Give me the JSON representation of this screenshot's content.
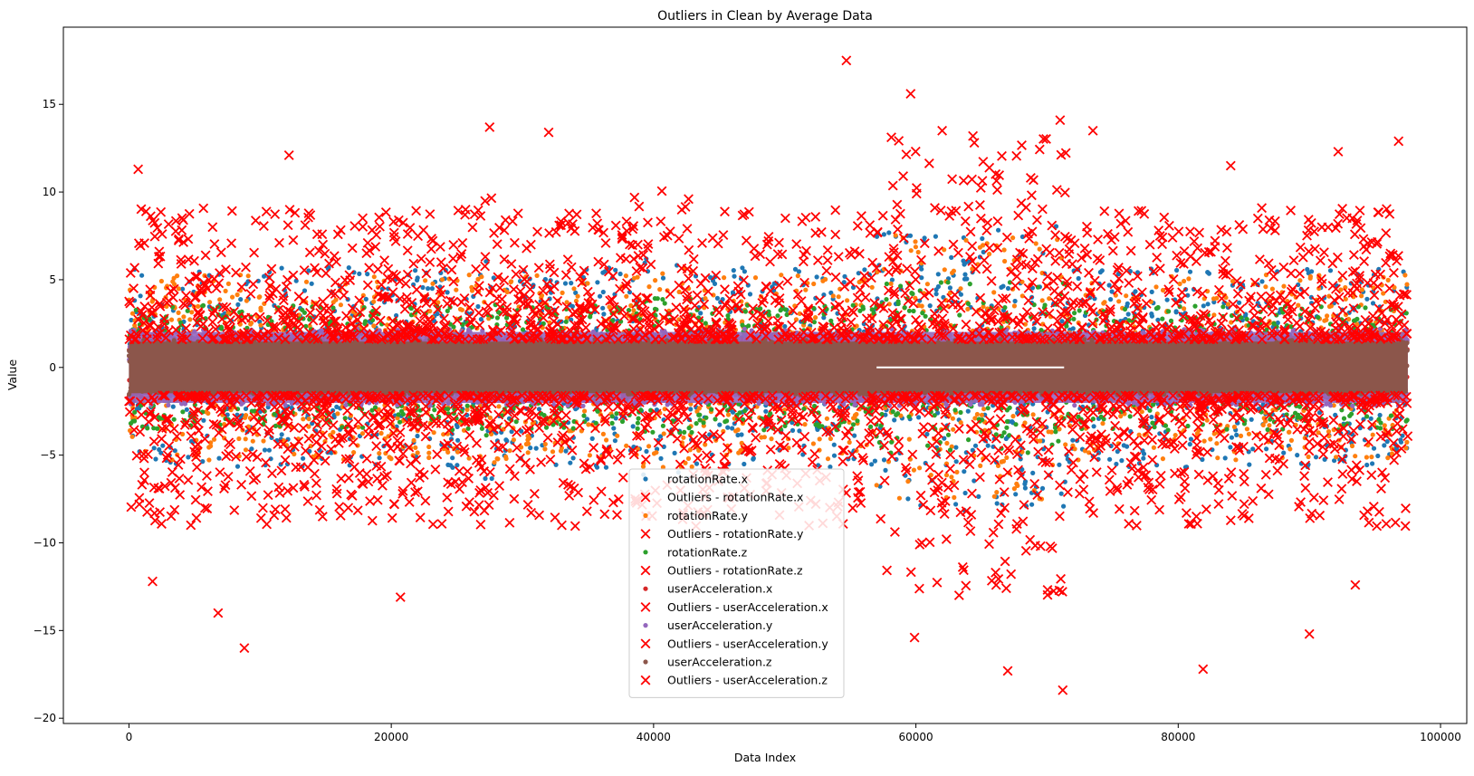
{
  "chart_data": {
    "type": "scatter",
    "title": "Outliers in Clean by Average Data",
    "xlabel": "Data Index",
    "ylabel": "Value",
    "xlim": [
      -5000,
      102000
    ],
    "ylim": [
      -20.3,
      19.4
    ],
    "xticks": [
      0,
      20000,
      40000,
      60000,
      80000,
      100000
    ],
    "yticks": [
      -20,
      -15,
      -10,
      -5,
      0,
      5,
      10,
      15
    ],
    "x_range_of_points": [
      0,
      97500
    ],
    "grid": false,
    "legend_position": "lower-center",
    "series": [
      {
        "name": "rotationRate.x",
        "marker": "dot",
        "color": "#1f77b4",
        "typical_range": [
          -6.5,
          6.5
        ]
      },
      {
        "name": "Outliers - rotationRate.x",
        "marker": "x",
        "color": "#ff0000"
      },
      {
        "name": "rotationRate.y",
        "marker": "dot",
        "color": "#ff7f0e",
        "typical_range": [
          -6,
          6
        ]
      },
      {
        "name": "Outliers - rotationRate.y",
        "marker": "x",
        "color": "#ff0000"
      },
      {
        "name": "rotationRate.z",
        "marker": "dot",
        "color": "#2ca02c",
        "typical_range": [
          -4,
          4
        ]
      },
      {
        "name": "Outliers - rotationRate.z",
        "marker": "x",
        "color": "#ff0000"
      },
      {
        "name": "userAcceleration.x",
        "marker": "dot",
        "color": "#d62728",
        "typical_range": [
          -1.7,
          1.7
        ]
      },
      {
        "name": "Outliers - userAcceleration.x",
        "marker": "x",
        "color": "#ff0000"
      },
      {
        "name": "userAcceleration.y",
        "marker": "dot",
        "color": "#9467bd",
        "typical_range": [
          -2.2,
          2.2
        ]
      },
      {
        "name": "Outliers - userAcceleration.y",
        "marker": "x",
        "color": "#ff0000"
      },
      {
        "name": "userAcceleration.z",
        "marker": "dot",
        "color": "#8c564b",
        "typical_range": [
          -1.6,
          1.6
        ]
      },
      {
        "name": "Outliers - userAcceleration.z",
        "marker": "x",
        "color": "#ff0000"
      }
    ],
    "notable_outliers": [
      {
        "x": 54700,
        "y": 17.5
      },
      {
        "x": 59600,
        "y": 15.6
      },
      {
        "x": 71000,
        "y": 14.1
      },
      {
        "x": 27500,
        "y": 13.7
      },
      {
        "x": 32000,
        "y": 13.4
      },
      {
        "x": 73500,
        "y": 13.5
      },
      {
        "x": 62000,
        "y": 13.5
      },
      {
        "x": 96800,
        "y": 12.9
      },
      {
        "x": 12200,
        "y": 12.1
      },
      {
        "x": 92200,
        "y": 12.3
      },
      {
        "x": 700,
        "y": 11.3
      },
      {
        "x": 84000,
        "y": 11.5
      },
      {
        "x": 8800,
        "y": -16.0
      },
      {
        "x": 71200,
        "y": -18.4
      },
      {
        "x": 81900,
        "y": -17.2
      },
      {
        "x": 67000,
        "y": -17.3
      },
      {
        "x": 59900,
        "y": -15.4
      },
      {
        "x": 90000,
        "y": -15.2
      },
      {
        "x": 6800,
        "y": -14.0
      },
      {
        "x": 20700,
        "y": -13.1
      },
      {
        "x": 93500,
        "y": -12.4
      },
      {
        "x": 1800,
        "y": -12.2
      }
    ]
  }
}
